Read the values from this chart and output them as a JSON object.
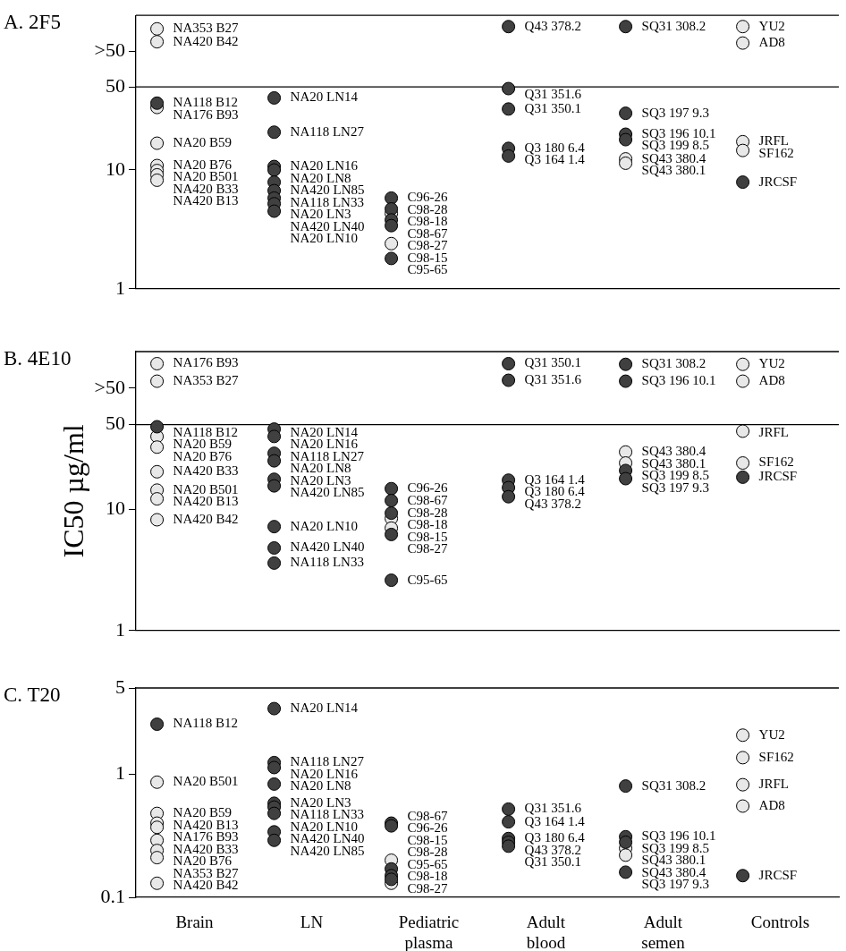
{
  "chart_data": [
    {
      "type": "scatter",
      "title": "A. 2F5",
      "categories": [
        "Brain",
        "LN",
        "Pediatric plasma",
        "Adult blood",
        "Adult semen",
        "Controls"
      ],
      "log": true,
      "ylim": [
        1,
        200
      ],
      "yticks": [
        1,
        10,
        50,
        {
          "value": 100,
          "label": ">50"
        }
      ],
      "tick_labels": "y",
      "marker": "circle",
      "ref_lines": [
        {
          "axis": "y",
          "value": 50
        }
      ],
      "series": [
        {
          "color": "#404040",
          "x": [
            "Brain",
            "LN",
            "LN",
            "LN",
            "LN",
            "LN",
            "LN",
            "LN",
            "LN",
            "LN",
            "Pediatric plasma",
            "Pediatric plasma",
            "Pediatric plasma",
            "Pediatric plasma",
            "Pediatric plasma",
            "Adult blood",
            "Adult blood",
            "Adult blood",
            "Adult blood",
            "Adult blood",
            "Adult semen",
            "Adult semen",
            "Adult semen",
            "Adult semen",
            "Controls"
          ],
          "values": [
            36.5,
            40.4,
            20.8,
            10.7,
            10.0,
            7.9,
            6.7,
            5.8,
            5.2,
            4.5,
            5.8,
            4.7,
            3.8,
            3.4,
            1.8,
            161,
            48.4,
            32.6,
            15.2,
            13.1,
            161,
            30,
            20.0,
            18.0,
            7.9
          ],
          "value_labels": [
            "NA118 B12",
            "NA20 LN14",
            "NA118 LN27",
            "NA20 LN16",
            "NA20 LN8",
            "NA420 LN85",
            "NA118 LN33",
            "NA20 LN3",
            "NA420 LN40",
            "NA20 LN10",
            "C96-26",
            "C98-28",
            "C98-67",
            "C98-27",
            "C95-65",
            "Q43 378.2",
            "Q31 351.6",
            "Q31 350.1",
            "Q3 180 6.4",
            "Q3 164 1.4",
            "SQ31 308.2",
            "SQ3 197 9.3",
            "SQ3 196 10.1",
            "SQ3 199 8.5",
            "JRCSF"
          ]
        },
        {
          "color": "#e8e8e8",
          "x": [
            "Brain",
            "Brain",
            "Brain",
            "Brain",
            "Brain",
            "Brain",
            "Brain",
            "Brain",
            "Pediatric plasma",
            "Pediatric plasma",
            "Adult semen",
            "Adult semen",
            "Controls",
            "Controls",
            "Controls",
            "Controls"
          ],
          "values": [
            154,
            120,
            33.6,
            16.8,
            10.9,
            9.9,
            9.1,
            8.2,
            4.3,
            2.4,
            12.4,
            11.4,
            161,
            117,
            17.3,
            14.6
          ],
          "value_labels": [
            "NA353 B27",
            "NA420 B42",
            "NA176 B93",
            "NA20 B59",
            "NA20 B76",
            "NA20 B501",
            "NA420 B33",
            "NA420 B13",
            "C98-18",
            "C98-15",
            "SQ43 380.4",
            "SQ43 380.1",
            "YU2",
            "AD8",
            "JRFL",
            "SF162"
          ]
        }
      ]
    },
    {
      "type": "scatter",
      "title": "B. 4E10",
      "ylabel": "IC50 µg/ml",
      "categories": [
        "Brain",
        "LN",
        "Pediatric plasma",
        "Adult blood",
        "Adult semen",
        "Controls"
      ],
      "log": true,
      "ylim": [
        1,
        200
      ],
      "yticks": [
        1,
        10,
        50,
        {
          "value": 100,
          "label": ">50"
        }
      ],
      "tick_labels": "y",
      "marker": "circle",
      "ref_lines": [
        {
          "axis": "y",
          "value": 50
        }
      ],
      "series": [
        {
          "color": "#404040",
          "x": [
            "Brain",
            "LN",
            "LN",
            "LN",
            "LN",
            "LN",
            "LN",
            "LN",
            "LN",
            "LN",
            "Pediatric plasma",
            "Pediatric plasma",
            "Pediatric plasma",
            "Pediatric plasma",
            "Pediatric plasma",
            "Adult blood",
            "Adult blood",
            "Adult blood",
            "Adult blood",
            "Adult blood",
            "Adult semen",
            "Adult semen",
            "Adult semen",
            "Adult semen",
            "Controls"
          ],
          "values": [
            48,
            45.9,
            39.9,
            29,
            25.1,
            17.7,
            15.6,
            7.2,
            4.8,
            3.6,
            14.8,
            11.8,
            9.3,
            6.2,
            2.6,
            159,
            116,
            17.4,
            15.1,
            12.7,
            157,
            114,
            20.9,
            17.9,
            18.4
          ],
          "value_labels": [
            "NA118 B12",
            "NA20 LN14",
            "NA20 LN16",
            "NA118 LN27",
            "NA20 LN8",
            "NA20 LN3",
            "NA420 LN85",
            "NA20 LN10",
            "NA420 LN40",
            "NA118 LN33",
            "C96-26",
            "C98-67",
            "C98-28",
            "C98-27",
            "C95-65",
            "Q31 350.1",
            "Q31 351.6",
            "Q3 164 1.4",
            "Q3 180 6.4",
            "Q43 378.2",
            "SQ31 308.2",
            "SQ3 196 10.1",
            "SQ3 199 8.5",
            "SQ3 197 9.3",
            "JRCSF"
          ]
        },
        {
          "color": "#e8e8e8",
          "x": [
            "Brain",
            "Brain",
            "Brain",
            "Brain",
            "Brain",
            "Brain",
            "Brain",
            "Brain",
            "Pediatric plasma",
            "Pediatric plasma",
            "Adult semen",
            "Adult semen",
            "Controls",
            "Controls",
            "Controls",
            "Controls"
          ],
          "values": [
            159,
            114,
            39.9,
            32.6,
            20.4,
            14.4,
            12.2,
            8.2,
            8.4,
            7.0,
            29.7,
            24.1,
            157,
            114,
            44.1,
            24.1
          ],
          "value_labels": [
            "NA176 B93",
            "NA353 B27",
            "NA20 B59",
            "NA20 B76",
            "NA420 B33",
            "NA20 B501",
            "NA420 B13",
            "NA420 B42",
            "C98-18",
            "C98-15",
            "SQ43 380.4",
            "SQ43 380.1",
            "YU2",
            "AD8",
            "JRFL",
            "SF162"
          ]
        }
      ]
    },
    {
      "type": "scatter",
      "title": "C. T20",
      "categories": [
        "Brain",
        "LN",
        "Pediatric plasma",
        "Adult blood",
        "Adult semen",
        "Controls"
      ],
      "log": true,
      "ylim": [
        0.1,
        5
      ],
      "yticks": [
        0.1,
        1,
        5
      ],
      "marker": "circle",
      "series": [
        {
          "color": "#404040",
          "x": [
            "Brain",
            "LN",
            "LN",
            "LN",
            "LN",
            "LN",
            "LN",
            "LN",
            "LN",
            "LN",
            "Pediatric plasma",
            "Pediatric plasma",
            "Pediatric plasma",
            "Pediatric plasma",
            "Pediatric plasma",
            "Adult blood",
            "Adult blood",
            "Adult blood",
            "Adult blood",
            "Adult blood",
            "Adult semen",
            "Adult semen",
            "Adult semen",
            "Adult semen",
            "Controls"
          ],
          "values": [
            2.54,
            3.4,
            1.24,
            1.13,
            0.83,
            0.58,
            0.54,
            0.48,
            0.34,
            0.29,
            0.4,
            0.38,
            0.17,
            0.15,
            0.14,
            0.52,
            0.41,
            0.3,
            0.28,
            0.26,
            0.8,
            0.31,
            0.28,
            0.16,
            0.15
          ],
          "value_labels": [
            "NA118 B12",
            "NA20 LN14",
            "NA118 LN27",
            "NA20 LN16",
            "NA20 LN8",
            "NA20 LN3",
            "NA118 LN33",
            "NA20 LN10",
            "NA420 LN40",
            "NA420 LN85",
            "C98-67",
            "C96-26",
            "C98-28",
            "C95-65",
            "C98-18",
            "Q31 351.6",
            "Q3 164 1.4",
            "Q3 180 6.4",
            "Q43 378.2",
            "Q31 350.1",
            "SQ31 308.2",
            "SQ3 196 10.1",
            "SQ3 199 8.5",
            "SQ3 197 9.3",
            "JRCSF"
          ]
        },
        {
          "color": "#e8e8e8",
          "x": [
            "Brain",
            "Brain",
            "Brain",
            "Brain",
            "Brain",
            "Brain",
            "Brain",
            "Brain",
            "Pediatric plasma",
            "Pediatric plasma",
            "Adult semen",
            "Adult semen",
            "Controls",
            "Controls",
            "Controls",
            "Controls"
          ],
          "values": [
            0.86,
            0.48,
            0.4,
            0.37,
            0.29,
            0.24,
            0.21,
            0.13,
            0.2,
            0.13,
            0.25,
            0.22,
            2.07,
            1.36,
            0.82,
            0.55
          ],
          "value_labels": [
            "NA20 B501",
            "NA20 B59",
            "NA420 B13",
            "NA176 B93",
            "NA420 B33",
            "NA20 B76",
            "NA353 B27",
            "NA420 B42",
            "C98-15",
            "C98-27",
            "SQ43 380.1",
            "SQ43 380.4",
            "YU2",
            "SF162",
            "JRFL",
            "AD8"
          ]
        }
      ]
    }
  ]
}
